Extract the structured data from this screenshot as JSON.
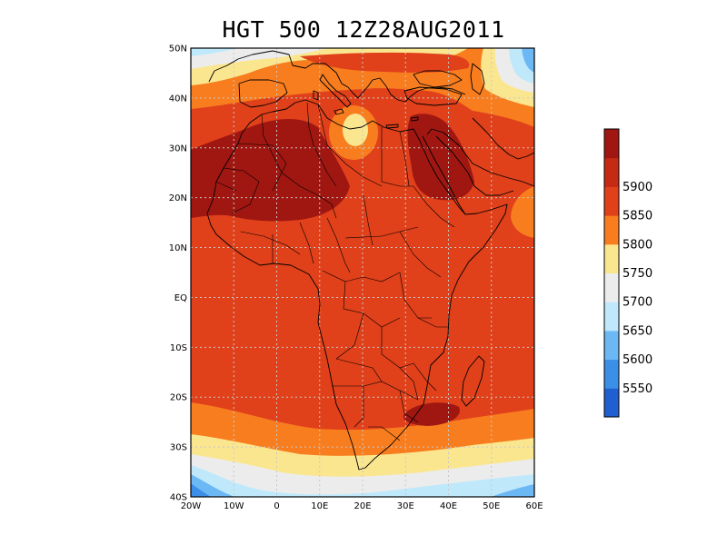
{
  "title": "HGT 500 12Z28AUG2011",
  "lat_labels": [
    "50N",
    "40N",
    "30N",
    "20N",
    "10N",
    "EQ",
    "10S",
    "20S",
    "30S",
    "40S"
  ],
  "lon_labels": [
    "20W",
    "10W",
    "0",
    "10E",
    "20E",
    "30E",
    "40E",
    "50E",
    "60E"
  ],
  "colorbar": {
    "labels": [
      "5550",
      "5600",
      "5650",
      "5700",
      "5750",
      "5800",
      "5850",
      "5900"
    ],
    "colors": [
      "#1f5fd0",
      "#3c8fe6",
      "#6cb8f5",
      "#bfe9fb",
      "#ececec",
      "#fbe690",
      "#f87d1f",
      "#e0401a",
      "#c62a14",
      "#a01712"
    ]
  },
  "field_colors": {
    "base": "#e0401a",
    "max": "#a01712",
    "orange": "#f87d1f",
    "yellow": "#fbe690",
    "grey": "#ececec",
    "lightblue": "#bfe9fb",
    "blue": "#6cb8f5",
    "darkblue": "#3c8fe6"
  }
}
